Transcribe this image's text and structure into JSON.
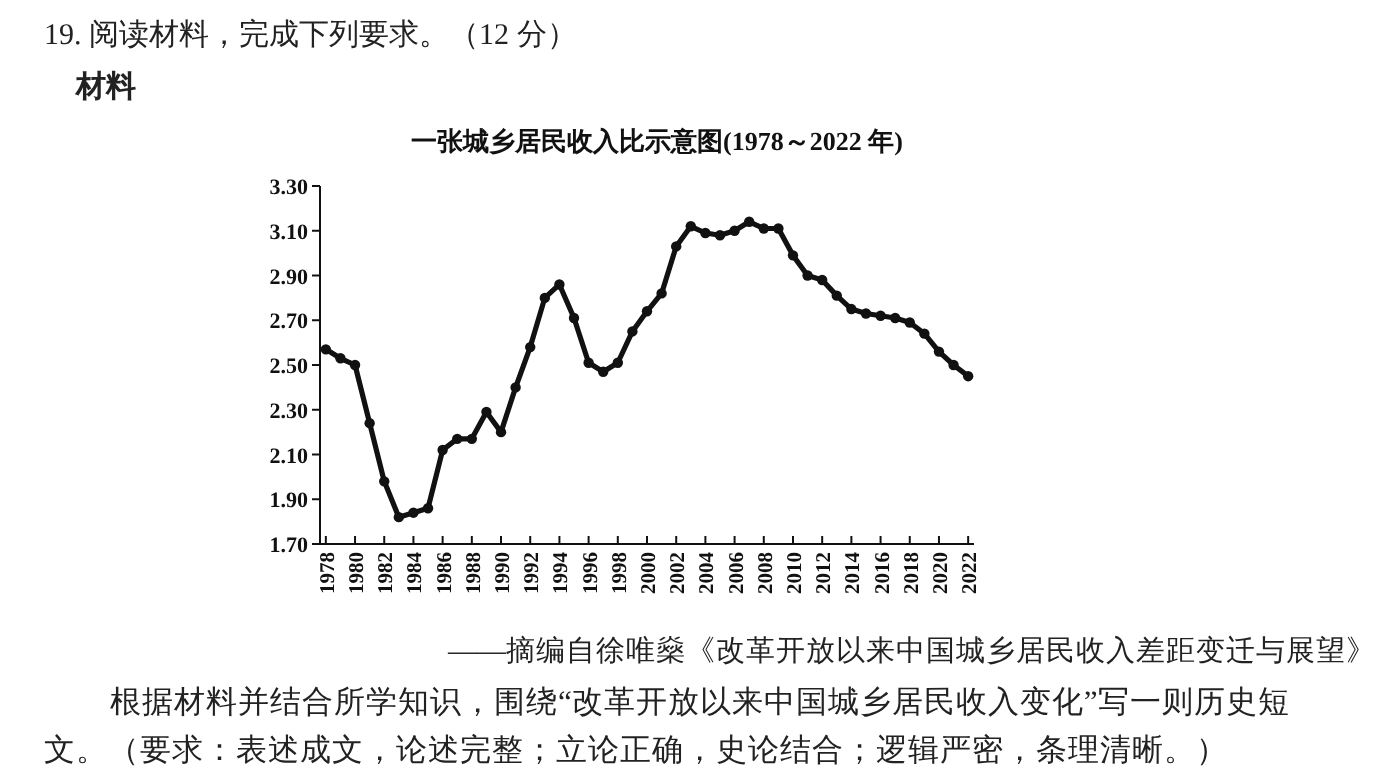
{
  "chart_data": {
    "type": "line",
    "title": "一张城乡居民收入比示意图(1978～2022 年)",
    "annotations": [
      "19. 阅读材料，完成下列要求。（12 分）",
      "材料",
      "——摘编自徐唯燊《改革开放以来中国城乡居民收入差距变迁与展望》",
      "根据材料并结合所学知识，围绕“改革开放以来中国城乡居民收入变化”写一则历史短",
      "文。（要求：表述成文，论述完整；立论正确，史论结合；逻辑严密，条理清晰。）"
    ],
    "x": [
      1978,
      1979,
      1980,
      1981,
      1982,
      1983,
      1984,
      1985,
      1986,
      1987,
      1988,
      1989,
      1990,
      1991,
      1992,
      1993,
      1994,
      1995,
      1996,
      1997,
      1998,
      1999,
      2000,
      2001,
      2002,
      2003,
      2004,
      2005,
      2006,
      2007,
      2008,
      2009,
      2010,
      2011,
      2012,
      2013,
      2014,
      2015,
      2016,
      2017,
      2018,
      2019,
      2020,
      2021,
      2022
    ],
    "series": [
      {
        "color": "#111111",
        "values": [
          2.57,
          2.53,
          2.5,
          2.24,
          1.98,
          1.82,
          1.84,
          1.86,
          2.12,
          2.17,
          2.17,
          2.29,
          2.2,
          2.4,
          2.58,
          2.8,
          2.86,
          2.71,
          2.51,
          2.47,
          2.51,
          2.65,
          2.74,
          2.82,
          3.03,
          3.12,
          3.09,
          3.08,
          3.1,
          3.14,
          3.11,
          3.11,
          2.99,
          2.9,
          2.88,
          2.81,
          2.75,
          2.73,
          2.72,
          2.71,
          2.69,
          2.64,
          2.56,
          2.5,
          2.45
        ]
      }
    ],
    "xlim": [
      1977.6,
      2022.4
    ],
    "xticks": [
      1978,
      1980,
      1982,
      1984,
      1986,
      1988,
      1990,
      1992,
      1994,
      1996,
      1998,
      2000,
      2002,
      2004,
      2006,
      2008,
      2010,
      2012,
      2014,
      2016,
      2018,
      2020,
      2022
    ],
    "ylim": [
      1.7,
      3.3
    ],
    "yticks": [
      {
        "value": 1.7,
        "label": "1.70"
      },
      {
        "value": 1.9,
        "label": "1.90"
      },
      {
        "value": 2.1,
        "label": "2.10"
      },
      {
        "value": 2.3,
        "label": "2.30"
      },
      {
        "value": 2.5,
        "label": "2.50"
      },
      {
        "value": 2.7,
        "label": "2.70"
      },
      {
        "value": 2.9,
        "label": "2.90"
      },
      {
        "value": 3.1,
        "label": "3.10"
      },
      {
        "value": 3.3,
        "label": "3.30"
      }
    ],
    "marker": "circle",
    "line_style": "solid"
  }
}
